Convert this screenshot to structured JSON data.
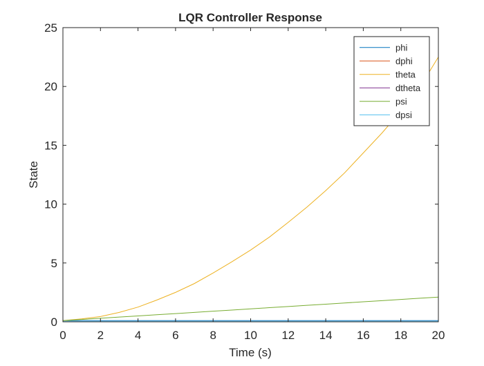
{
  "chart_data": {
    "type": "line",
    "title": "LQR Controller Response",
    "xlabel": "Time (s)",
    "ylabel": "State",
    "xlim": [
      0,
      20
    ],
    "ylim": [
      0,
      25
    ],
    "xticks": [
      0,
      2,
      4,
      6,
      8,
      10,
      12,
      14,
      16,
      18,
      20
    ],
    "yticks": [
      0,
      5,
      10,
      15,
      20,
      25
    ],
    "grid": false,
    "legend_position": "top-right",
    "x": [
      0,
      1,
      2,
      3,
      4,
      5,
      6,
      7,
      8,
      9,
      10,
      11,
      12,
      13,
      14,
      15,
      16,
      17,
      18,
      19,
      20
    ],
    "series": [
      {
        "name": "phi",
        "color": "#0072BD",
        "values": [
          0.1,
          0.1,
          0.1,
          0.1,
          0.1,
          0.1,
          0.1,
          0.1,
          0.1,
          0.1,
          0.1,
          0.1,
          0.1,
          0.1,
          0.1,
          0.1,
          0.1,
          0.1,
          0.1,
          0.1,
          0.1
        ]
      },
      {
        "name": "dphi",
        "color": "#D95319",
        "values": [
          0,
          0,
          0,
          0,
          0,
          0,
          0,
          0,
          0,
          0,
          0,
          0,
          0,
          0,
          0,
          0,
          0,
          0,
          0,
          0,
          0
        ]
      },
      {
        "name": "theta",
        "color": "#EDB120",
        "values": [
          0.1,
          0.25,
          0.45,
          0.8,
          1.25,
          1.85,
          2.5,
          3.25,
          4.15,
          5.1,
          6.1,
          7.2,
          8.45,
          9.75,
          11.15,
          12.65,
          14.35,
          16.05,
          17.9,
          19.9,
          22.5
        ]
      },
      {
        "name": "dtheta",
        "color": "#7E2F8E",
        "values": [
          0,
          0,
          0,
          0,
          0,
          0,
          0,
          0,
          0,
          0,
          0,
          0,
          0,
          0,
          0,
          0,
          0,
          0,
          0,
          0,
          0
        ]
      },
      {
        "name": "psi",
        "color": "#77AC30",
        "values": [
          0.1,
          0.2,
          0.3,
          0.4,
          0.5,
          0.6,
          0.7,
          0.8,
          0.9,
          1.0,
          1.1,
          1.2,
          1.3,
          1.4,
          1.5,
          1.6,
          1.7,
          1.8,
          1.9,
          2.0,
          2.1
        ]
      },
      {
        "name": "dpsi",
        "color": "#4DBEEE",
        "values": [
          0.02,
          0.02,
          0.02,
          0.02,
          0.02,
          0.02,
          0.02,
          0.02,
          0.02,
          0.02,
          0.02,
          0.02,
          0.02,
          0.02,
          0.02,
          0.02,
          0.02,
          0.02,
          0.02,
          0.02,
          0.02
        ]
      }
    ]
  }
}
